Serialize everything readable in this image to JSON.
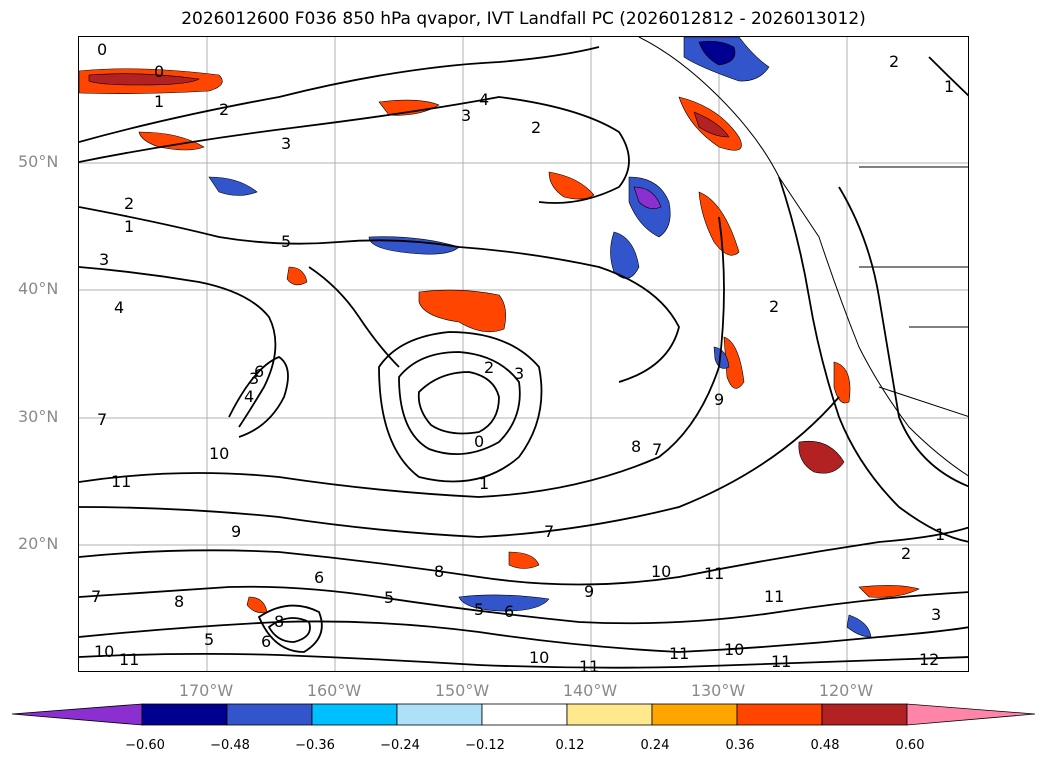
{
  "title": "2026012600 F036 850 hPa qvapor, IVT Landfall PC (2026012812 - 2026013012)",
  "lat_labels": [
    "50°N",
    "40°N",
    "30°N",
    "20°N"
  ],
  "lon_labels": [
    "170°W",
    "160°W",
    "150°W",
    "140°W",
    "130°W",
    "120°W"
  ],
  "colorbar": {
    "colors": [
      "#8b2fd1",
      "#000090",
      "#3355cc",
      "#00bfff",
      "#aee0f8",
      "#ffffff",
      "#ffe98c",
      "#ffa500",
      "#ff4500",
      "#b22222",
      "#ff85a8"
    ],
    "ticks": [
      "−0.60",
      "−0.48",
      "−0.36",
      "−0.24",
      "−0.12",
      "0.12",
      "0.24",
      "0.36",
      "0.48",
      "0.60"
    ]
  },
  "contour_labels": [
    "0",
    "0",
    "1",
    "2",
    "3",
    "4",
    "3",
    "2",
    "2",
    "1",
    "2",
    "1",
    "3",
    "4",
    "5",
    "6",
    "7",
    "8",
    "9",
    "10",
    "11",
    "0",
    "1",
    "2",
    "3",
    "7",
    "8",
    "9",
    "10",
    "11",
    "10",
    "11",
    "11",
    "10",
    "11",
    "11",
    "12",
    "1",
    "2",
    "3",
    "6",
    "5",
    "8",
    "9",
    "6",
    "5",
    "7",
    "8",
    "6",
    "5",
    "4",
    "3",
    "2",
    "7",
    "10",
    "11"
  ]
}
